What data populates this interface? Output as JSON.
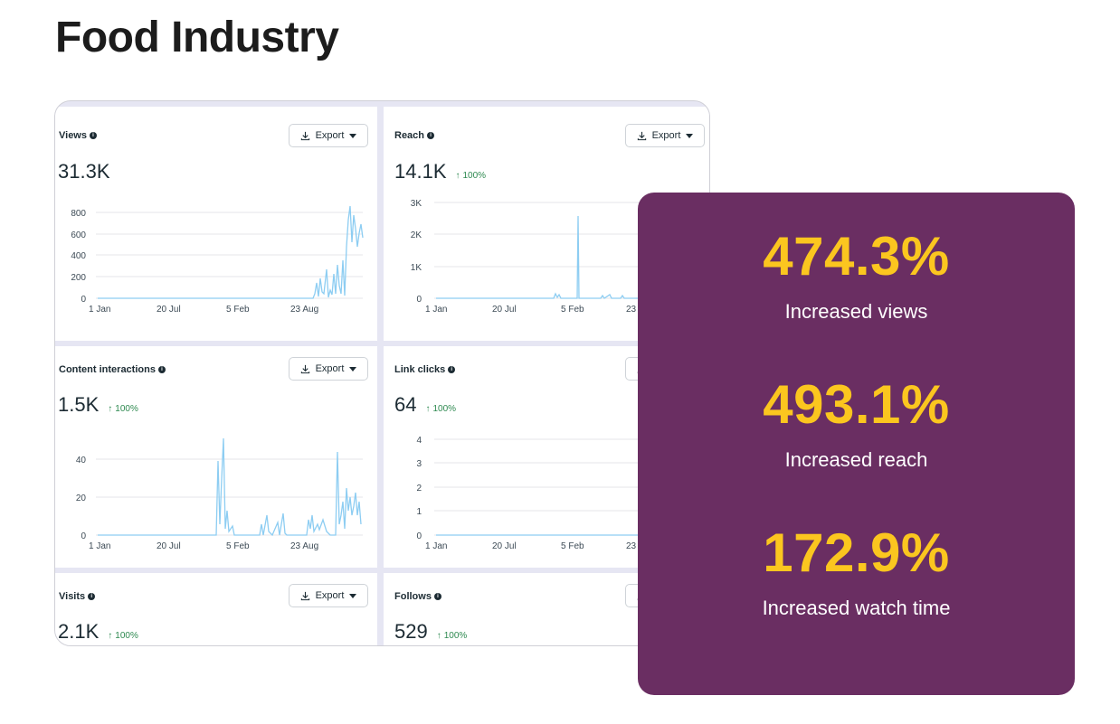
{
  "page": {
    "title": "Food Industry"
  },
  "export_label": "Export",
  "cards": [
    {
      "title": "Views",
      "value": "31.3K",
      "delta": "",
      "y_ticks": [
        "800",
        "600",
        "400",
        "200",
        "0"
      ],
      "x_ticks": [
        "1 Jan",
        "20 Jul",
        "5 Feb",
        "23 Aug"
      ]
    },
    {
      "title": "Reach",
      "value": "14.1K",
      "delta": "100%",
      "y_ticks": [
        "3K",
        "2K",
        "1K",
        "0"
      ],
      "x_ticks": [
        "1 Jan",
        "20 Jul",
        "5 Feb",
        "23"
      ]
    },
    {
      "title": "Content interactions",
      "value": "1.5K",
      "delta": "100%",
      "y_ticks": [
        "40",
        "20",
        "0"
      ],
      "x_ticks": [
        "1 Jan",
        "20 Jul",
        "5 Feb",
        "23 Aug"
      ]
    },
    {
      "title": "Link clicks",
      "value": "64",
      "delta": "100%",
      "y_ticks": [
        "4",
        "3",
        "2",
        "1",
        "0"
      ],
      "x_ticks": [
        "1 Jan",
        "20 Jul",
        "5 Feb",
        "23"
      ]
    },
    {
      "title": "Visits",
      "value": "2.1K",
      "delta": "100%"
    },
    {
      "title": "Follows",
      "value": "529",
      "delta": "100%"
    }
  ],
  "stats": [
    {
      "value": "474.3%",
      "label": "Increased views"
    },
    {
      "value": "493.1%",
      "label": "Increased reach"
    },
    {
      "value": "172.9%",
      "label": "Increased watch time"
    }
  ],
  "colors": {
    "accent": "#fbc61f",
    "panel": "#6a2e62",
    "line": "#8dcdf2",
    "up": "#2f8a51"
  }
}
